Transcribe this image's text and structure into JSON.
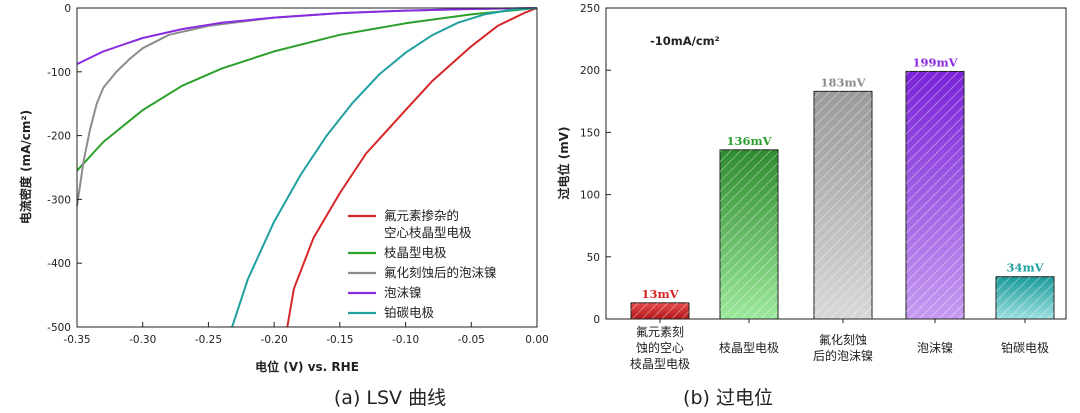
{
  "chart_data": [
    {
      "type": "line",
      "caption": "(a) LSV 曲线",
      "xlabel": "电位 (V) vs. RHE",
      "ylabel": "电流密度 (mA/cm²)",
      "xlim": [
        -0.35,
        0.0
      ],
      "ylim": [
        -500,
        0
      ],
      "xticks": [
        "-0.35",
        "-0.30",
        "-0.25",
        "-0.20",
        "-0.15",
        "-0.10",
        "-0.05",
        "0.00"
      ],
      "yticks": [
        "-500",
        "-400",
        "-300",
        "-200",
        "-100",
        "0"
      ],
      "legend_position": "bottom-right",
      "series": [
        {
          "name": "氟元素掺杂的\n空心枝晶型电极",
          "color": "#d62728",
          "x": [
            -0.19,
            -0.185,
            -0.17,
            -0.15,
            -0.13,
            -0.1,
            -0.08,
            -0.05,
            -0.03,
            -0.01,
            0.0
          ],
          "y": [
            -500,
            -440,
            -360,
            -290,
            -228,
            -160,
            -115,
            -60,
            -28,
            -8,
            0
          ]
        },
        {
          "name": "枝晶型电极",
          "color": "#2ca02c",
          "x": [
            -0.35,
            -0.33,
            -0.3,
            -0.27,
            -0.24,
            -0.2,
            -0.15,
            -0.1,
            -0.05,
            0.0
          ],
          "y": [
            -255,
            -210,
            -160,
            -122,
            -95,
            -68,
            -42,
            -24,
            -10,
            0
          ]
        },
        {
          "name": "氟化刻蚀后的泡沫镍",
          "color": "#8c8c8c",
          "x": [
            -0.352,
            -0.345,
            -0.34,
            -0.335,
            -0.33,
            -0.32,
            -0.31,
            -0.3,
            -0.28,
            -0.25,
            -0.2,
            -0.15,
            -0.1,
            -0.05,
            0.0
          ],
          "y": [
            -310,
            -240,
            -190,
            -150,
            -125,
            -100,
            -80,
            -63,
            -42,
            -28,
            -15,
            -8,
            -4,
            -1.5,
            0
          ]
        },
        {
          "name": "泡沫镍",
          "color": "#8a2be2",
          "x": [
            -0.35,
            -0.33,
            -0.3,
            -0.27,
            -0.24,
            -0.2,
            -0.15,
            -0.1,
            -0.05,
            0.0
          ],
          "y": [
            -88,
            -68,
            -47,
            -33,
            -23,
            -15,
            -8,
            -4,
            -1.5,
            0
          ]
        },
        {
          "name": "铂碳电极",
          "color": "#20a0a0",
          "x": [
            -0.232,
            -0.22,
            -0.2,
            -0.18,
            -0.16,
            -0.14,
            -0.12,
            -0.1,
            -0.08,
            -0.06,
            -0.04,
            -0.02,
            0.0
          ],
          "y": [
            -500,
            -425,
            -335,
            -262,
            -200,
            -148,
            -104,
            -70,
            -43,
            -23,
            -10,
            -3,
            0
          ]
        }
      ]
    },
    {
      "type": "bar",
      "caption": "(b) 过电位",
      "ylabel": "过电位 (mV)",
      "ylim": [
        0,
        250
      ],
      "yticks": [
        "0",
        "50",
        "100",
        "150",
        "200",
        "250"
      ],
      "annotation": "-10mA/cm²",
      "categories": [
        "氟元素刻\n蚀的空心\n枝晶型电极",
        "枝晶型电极",
        "氟化刻蚀\n后的泡沫镍",
        "泡沫镍",
        "铂碳电极"
      ],
      "values": [
        13,
        136,
        183,
        199,
        34
      ],
      "value_labels": [
        "13mV",
        "136mV",
        "183mV",
        "199mV",
        "34mV"
      ],
      "colors": [
        "#d62728",
        "#2ca02c",
        "#8c8c8c",
        "#8a2be2",
        "#20a0a0"
      ]
    }
  ]
}
